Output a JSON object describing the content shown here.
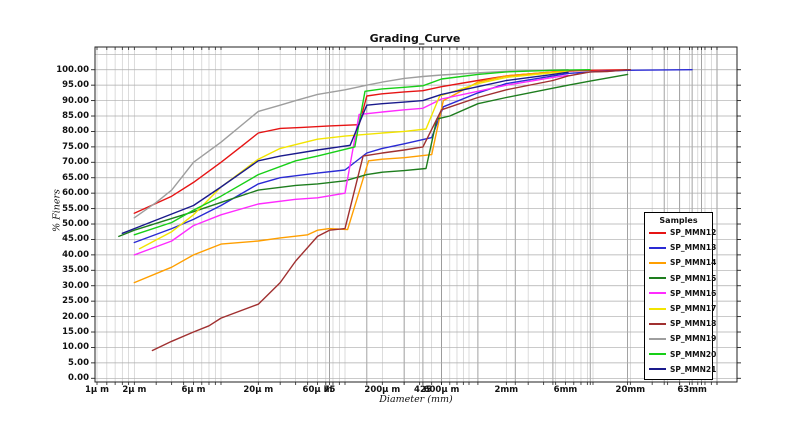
{
  "title": "Grading_Curve",
  "axes": {
    "x_label": "Diameter (mm)",
    "y_label": "% Finers"
  },
  "legend": {
    "title": "Samples",
    "entries": [
      {
        "label": "SP_MMN12",
        "color": "#e61414"
      },
      {
        "label": "SP_MMN13",
        "color": "#2a2ad4"
      },
      {
        "label": "SP_MMN14",
        "color": "#ff9f00"
      },
      {
        "label": "SP_MMN15",
        "color": "#1e7d1e"
      },
      {
        "label": "SP_MMN16",
        "color": "#ff2bff"
      },
      {
        "label": "SP_MMN17",
        "color": "#f2e400"
      },
      {
        "label": "SP_MMN18",
        "color": "#a03030"
      },
      {
        "label": "SP_MMN19",
        "color": "#9e9e9e"
      },
      {
        "label": "SP_MMN20",
        "color": "#17cf17"
      },
      {
        "label": "SP_MMN21",
        "color": "#1a1a8c"
      }
    ]
  },
  "chart_data": {
    "type": "line",
    "title": "Grading_Curve",
    "xlabel": "Diameter (mm)",
    "ylabel": "% Finers",
    "x_axis": {
      "scale": "log",
      "unit": "mm",
      "ticks": [
        {
          "value": 0.001,
          "label": "1µ m"
        },
        {
          "value": 0.002,
          "label": "2µ m"
        },
        {
          "value": 0.006,
          "label": "6µ m"
        },
        {
          "value": 0.02,
          "label": "20µ m"
        },
        {
          "value": 0.06,
          "label": "60µ m"
        },
        {
          "value": 0.075,
          "label": "75"
        },
        {
          "value": 0.2,
          "label": "200µ m"
        },
        {
          "value": 0.425,
          "label": "425"
        },
        {
          "value": 0.6,
          "label": "600µ m"
        },
        {
          "value": 2,
          "label": "2mm"
        },
        {
          "value": 6,
          "label": "6mm"
        },
        {
          "value": 20,
          "label": "20mm"
        },
        {
          "value": 63,
          "label": "63mm"
        }
      ],
      "extra_minor_lines": [
        0.0012,
        0.0014,
        0.0016,
        0.0018
      ],
      "sieve_lines": [
        0.075,
        0.15,
        0.3,
        0.425,
        0.6,
        1.18,
        2.36,
        4.75,
        9.5,
        19,
        37.5,
        50,
        63,
        75,
        100
      ]
    },
    "y_axis": {
      "min": 0,
      "max": 105,
      "tick_step": 5,
      "labeled_max": 100,
      "grid": true
    },
    "series": [
      {
        "name": "SP_MMN12",
        "color": "#e61414",
        "points": [
          [
            0.002,
            53.5
          ],
          [
            0.004,
            59
          ],
          [
            0.006,
            63.5
          ],
          [
            0.01,
            70
          ],
          [
            0.015,
            75.5
          ],
          [
            0.02,
            79.5
          ],
          [
            0.03,
            81
          ],
          [
            0.045,
            81.3
          ],
          [
            0.075,
            81.8
          ],
          [
            0.13,
            82.2
          ],
          [
            0.15,
            91.5
          ],
          [
            0.2,
            92.2
          ],
          [
            0.3,
            92.8
          ],
          [
            0.425,
            93.2
          ],
          [
            0.6,
            94.5
          ],
          [
            1.18,
            96.5
          ],
          [
            2,
            98
          ],
          [
            4.75,
            99.3
          ],
          [
            6.3,
            99.6
          ],
          [
            9.5,
            99.8
          ],
          [
            20,
            100
          ]
        ]
      },
      {
        "name": "SP_MMN13",
        "color": "#2a2ad4",
        "points": [
          [
            0.002,
            44
          ],
          [
            0.004,
            48.5
          ],
          [
            0.006,
            51.5
          ],
          [
            0.01,
            56
          ],
          [
            0.02,
            63
          ],
          [
            0.03,
            65
          ],
          [
            0.06,
            66.5
          ],
          [
            0.1,
            67.5
          ],
          [
            0.15,
            73
          ],
          [
            0.2,
            74.5
          ],
          [
            0.3,
            76
          ],
          [
            0.5,
            78
          ],
          [
            0.62,
            88
          ],
          [
            1.18,
            92.5
          ],
          [
            2,
            95.5
          ],
          [
            4.75,
            98
          ],
          [
            6.3,
            98.8
          ],
          [
            9.5,
            99.3
          ],
          [
            19,
            99.8
          ],
          [
            63,
            100
          ]
        ]
      },
      {
        "name": "SP_MMN14",
        "color": "#ff9f00",
        "points": [
          [
            0.002,
            31
          ],
          [
            0.004,
            36
          ],
          [
            0.006,
            40
          ],
          [
            0.01,
            43.5
          ],
          [
            0.02,
            44.5
          ],
          [
            0.03,
            45.5
          ],
          [
            0.05,
            46.5
          ],
          [
            0.06,
            48
          ],
          [
            0.075,
            48.5
          ],
          [
            0.105,
            48.2
          ],
          [
            0.155,
            70.5
          ],
          [
            0.2,
            71
          ],
          [
            0.3,
            71.5
          ],
          [
            0.5,
            72.5
          ],
          [
            0.62,
            90
          ],
          [
            1.18,
            96
          ],
          [
            2,
            98
          ],
          [
            4.75,
            99.3
          ],
          [
            6.3,
            99.6
          ]
        ]
      },
      {
        "name": "SP_MMN15",
        "color": "#1e7d1e",
        "points": [
          [
            0.0015,
            46
          ],
          [
            0.002,
            48
          ],
          [
            0.006,
            54
          ],
          [
            0.01,
            57
          ],
          [
            0.02,
            61
          ],
          [
            0.04,
            62.5
          ],
          [
            0.06,
            63
          ],
          [
            0.1,
            64
          ],
          [
            0.15,
            66
          ],
          [
            0.2,
            66.8
          ],
          [
            0.3,
            67.3
          ],
          [
            0.45,
            68
          ],
          [
            0.55,
            84
          ],
          [
            0.7,
            85
          ],
          [
            1.18,
            89
          ],
          [
            2,
            91
          ],
          [
            4.75,
            94
          ],
          [
            6.3,
            95
          ],
          [
            9.5,
            96.3
          ],
          [
            19,
            98.5
          ]
        ]
      },
      {
        "name": "SP_MMN16",
        "color": "#ff2bff",
        "points": [
          [
            0.002,
            40
          ],
          [
            0.004,
            44.5
          ],
          [
            0.006,
            49.5
          ],
          [
            0.01,
            53
          ],
          [
            0.02,
            56.5
          ],
          [
            0.04,
            58
          ],
          [
            0.06,
            58.5
          ],
          [
            0.1,
            60
          ],
          [
            0.13,
            85.5
          ],
          [
            0.2,
            86.3
          ],
          [
            0.3,
            87
          ],
          [
            0.425,
            87.5
          ],
          [
            0.6,
            90.5
          ],
          [
            1.18,
            93
          ],
          [
            2,
            95
          ],
          [
            4.75,
            97.5
          ],
          [
            6.3,
            98.2
          ]
        ]
      },
      {
        "name": "SP_MMN17",
        "color": "#f2e400",
        "points": [
          [
            0.0022,
            42
          ],
          [
            0.004,
            47.5
          ],
          [
            0.006,
            53
          ],
          [
            0.01,
            62
          ],
          [
            0.02,
            71
          ],
          [
            0.03,
            74.5
          ],
          [
            0.06,
            77.5
          ],
          [
            0.1,
            78.5
          ],
          [
            0.2,
            79.5
          ],
          [
            0.3,
            80
          ],
          [
            0.45,
            80.8
          ],
          [
            0.58,
            91.5
          ],
          [
            1.18,
            95.5
          ],
          [
            2,
            97.5
          ],
          [
            4.75,
            99
          ],
          [
            6.3,
            99.4
          ]
        ]
      },
      {
        "name": "SP_MMN18",
        "color": "#a03030",
        "points": [
          [
            0.0028,
            9
          ],
          [
            0.004,
            12
          ],
          [
            0.006,
            15
          ],
          [
            0.008,
            17
          ],
          [
            0.01,
            19.5
          ],
          [
            0.02,
            24
          ],
          [
            0.03,
            31
          ],
          [
            0.04,
            38
          ],
          [
            0.06,
            46
          ],
          [
            0.075,
            48
          ],
          [
            0.1,
            48.5
          ],
          [
            0.14,
            72
          ],
          [
            0.2,
            73
          ],
          [
            0.3,
            74
          ],
          [
            0.425,
            75
          ],
          [
            0.6,
            87
          ],
          [
            1.18,
            91
          ],
          [
            2,
            93.5
          ],
          [
            4.75,
            96.5
          ],
          [
            6.3,
            98
          ],
          [
            9.5,
            99.3
          ],
          [
            13,
            99.4
          ],
          [
            19,
            100
          ],
          [
            20,
            100
          ]
        ]
      },
      {
        "name": "SP_MMN19",
        "color": "#9e9e9e",
        "points": [
          [
            0.002,
            52
          ],
          [
            0.003,
            57
          ],
          [
            0.004,
            61
          ],
          [
            0.006,
            70
          ],
          [
            0.01,
            76.5
          ],
          [
            0.02,
            86.5
          ],
          [
            0.03,
            88.5
          ],
          [
            0.04,
            90
          ],
          [
            0.06,
            92
          ],
          [
            0.1,
            93.5
          ],
          [
            0.15,
            95
          ],
          [
            0.2,
            96
          ],
          [
            0.3,
            97.2
          ],
          [
            0.425,
            97.8
          ],
          [
            0.6,
            98.3
          ],
          [
            1.18,
            99
          ],
          [
            2,
            99.5
          ],
          [
            4.75,
            99.9
          ],
          [
            6.3,
            100
          ]
        ]
      },
      {
        "name": "SP_MMN20",
        "color": "#17cf17",
        "points": [
          [
            0.002,
            46.5
          ],
          [
            0.004,
            50.5
          ],
          [
            0.006,
            54.5
          ],
          [
            0.01,
            59
          ],
          [
            0.02,
            66
          ],
          [
            0.04,
            70.5
          ],
          [
            0.06,
            72
          ],
          [
            0.12,
            75
          ],
          [
            0.145,
            93
          ],
          [
            0.2,
            93.8
          ],
          [
            0.3,
            94.3
          ],
          [
            0.425,
            94.8
          ],
          [
            0.6,
            97
          ],
          [
            1.18,
            98.5
          ],
          [
            2,
            99.3
          ],
          [
            4.75,
            99.8
          ],
          [
            9.5,
            100
          ]
        ]
      },
      {
        "name": "SP_MMN21",
        "color": "#1a1a8c",
        "points": [
          [
            0.0016,
            47
          ],
          [
            0.002,
            48.5
          ],
          [
            0.006,
            56
          ],
          [
            0.01,
            62
          ],
          [
            0.02,
            70.5
          ],
          [
            0.03,
            72
          ],
          [
            0.06,
            74
          ],
          [
            0.11,
            75.5
          ],
          [
            0.15,
            88.5
          ],
          [
            0.2,
            89
          ],
          [
            0.3,
            89.5
          ],
          [
            0.425,
            90
          ],
          [
            0.6,
            92
          ],
          [
            1.18,
            94.5
          ],
          [
            2,
            96.5
          ],
          [
            4.75,
            98.5
          ],
          [
            6.3,
            99.2
          ]
        ]
      }
    ]
  }
}
